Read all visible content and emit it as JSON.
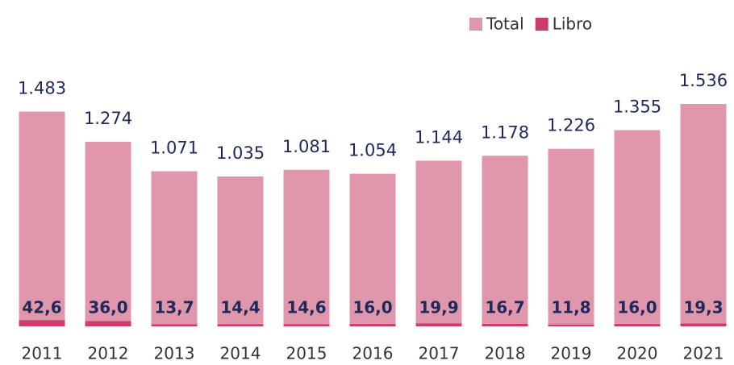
{
  "chart_data": {
    "type": "bar",
    "categories": [
      "2011",
      "2012",
      "2013",
      "2014",
      "2015",
      "2016",
      "2017",
      "2018",
      "2019",
      "2020",
      "2021"
    ],
    "series": [
      {
        "name": "Total",
        "color": "#e097ab",
        "values": [
          1483,
          1274,
          1071,
          1035,
          1081,
          1054,
          1144,
          1178,
          1226,
          1355,
          1536
        ],
        "value_labels": [
          "1.483",
          "1.274",
          "1.071",
          "1.035",
          "1.081",
          "1.054",
          "1.144",
          "1.178",
          "1.226",
          "1.355",
          "1.536"
        ]
      },
      {
        "name": "Libro",
        "color": "#cc3d6a",
        "values": [
          42.6,
          36.0,
          13.7,
          14.4,
          14.6,
          16.0,
          19.9,
          16.7,
          11.8,
          16.0,
          19.3
        ],
        "value_labels": [
          "42,6",
          "36,0",
          "13,7",
          "14,4",
          "14,6",
          "16,0",
          "19,9",
          "16,7",
          "11,8",
          "16,0",
          "19,3"
        ]
      }
    ],
    "overlap": true,
    "legend": "top-right"
  }
}
